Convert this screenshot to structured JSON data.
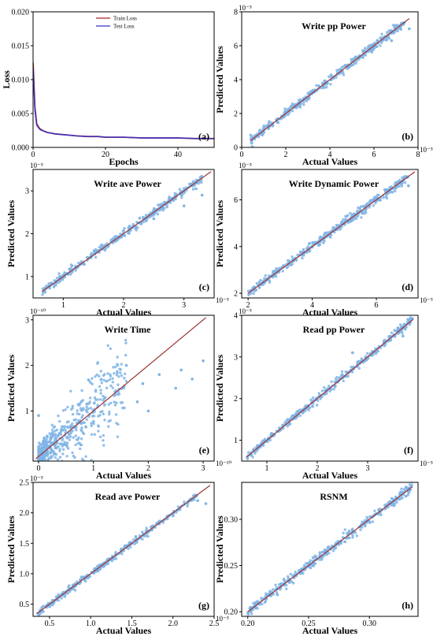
{
  "chart_data": [
    {
      "type": "line",
      "panel": "(a)",
      "xlabel": "Epochs",
      "ylabel": "Loss",
      "xlim": [
        0,
        50
      ],
      "ylim": [
        0,
        0.02
      ],
      "xticks": [
        0,
        20,
        40
      ],
      "xtick_labels": [
        "0",
        "20",
        "40"
      ],
      "yticks": [
        0,
        0.005,
        0.01,
        0.015,
        0.02
      ],
      "ytick_labels": [
        "0.000",
        "0.005",
        "0.010",
        "0.015",
        "0.020"
      ],
      "legend_position": "top-center",
      "colors": {
        "Train Loss": "#b22222",
        "Test Loss": "#3333cc"
      },
      "x": [
        0,
        0.5,
        1,
        1.5,
        2,
        3,
        4,
        5,
        6,
        8,
        10,
        12,
        15,
        18,
        20,
        25,
        30,
        35,
        40,
        45,
        50
      ],
      "series": [
        {
          "name": "Train Loss",
          "values": [
            0.0125,
            0.006,
            0.0035,
            0.003,
            0.0027,
            0.0024,
            0.0022,
            0.0021,
            0.002,
            0.0019,
            0.0018,
            0.0017,
            0.0016,
            0.0016,
            0.0015,
            0.0015,
            0.0014,
            0.0014,
            0.0014,
            0.0013,
            0.0013
          ]
        },
        {
          "name": "Test Loss",
          "values": [
            0.0118,
            0.0055,
            0.0033,
            0.0029,
            0.0026,
            0.0024,
            0.0022,
            0.0021,
            0.002,
            0.0019,
            0.0018,
            0.0017,
            0.0016,
            0.0016,
            0.0015,
            0.0015,
            0.0014,
            0.0014,
            0.0014,
            0.0013,
            0.0013
          ]
        }
      ]
    },
    {
      "type": "scatter",
      "panel": "(b)",
      "title": "Write pp Power",
      "xlabel": "Actual Values",
      "ylabel": "Predicted Values",
      "xlim": [
        0,
        8
      ],
      "ylim": [
        0,
        8
      ],
      "multiplier": "10⁻⁵",
      "xticks": [
        0,
        2,
        4,
        6,
        8
      ],
      "xtick_labels": [
        "0",
        "2",
        "4",
        "6",
        "8"
      ],
      "yticks": [
        0,
        2,
        4,
        6,
        8
      ],
      "ytick_labels": [
        "0",
        "2",
        "4",
        "6",
        "8"
      ],
      "fit_start": 0.4,
      "fit_end": 7.6,
      "range": [
        0.4,
        7.4
      ],
      "scatter": 0.12,
      "n_points": 400,
      "outliers": [
        [
          7.6,
          7.0
        ],
        [
          6.8,
          6.3
        ],
        [
          5.5,
          5.3
        ]
      ]
    },
    {
      "type": "scatter",
      "panel": "(c)",
      "title": "Write ave Power",
      "xlabel": "Actual Values",
      "ylabel": "Predicted Values",
      "xlim": [
        0.5,
        3.5
      ],
      "ylim": [
        0.5,
        3.5
      ],
      "multiplier": "10⁻⁵",
      "xticks": [
        1,
        2,
        3
      ],
      "xtick_labels": [
        "1",
        "2",
        "3"
      ],
      "yticks": [
        1,
        2,
        3
      ],
      "ytick_labels": [
        "1",
        "2",
        "3"
      ],
      "fit_start": 0.65,
      "fit_end": 3.45,
      "range": [
        0.65,
        3.3
      ],
      "scatter": 0.045,
      "n_points": 400,
      "outliers": [
        [
          3.3,
          2.9
        ],
        [
          3.0,
          2.65
        ],
        [
          2.5,
          2.35
        ],
        [
          3.2,
          3.05
        ]
      ]
    },
    {
      "type": "scatter",
      "panel": "(d)",
      "title": "Write Dynamic Power",
      "xlabel": "Actual Values",
      "ylabel": "Predicted Values",
      "xlim": [
        1.8,
        7.3
      ],
      "ylim": [
        1.8,
        7.3
      ],
      "multiplier": "10⁻⁵",
      "xticks": [
        2,
        4,
        6
      ],
      "xtick_labels": [
        "2",
        "4",
        "6"
      ],
      "yticks": [
        2,
        4,
        6
      ],
      "ytick_labels": [
        "2",
        "4",
        "6"
      ],
      "fit_start": 2.0,
      "fit_end": 7.2,
      "range": [
        2.0,
        7.0
      ],
      "scatter": 0.1,
      "n_points": 400,
      "outliers": [
        [
          7.0,
          6.6
        ],
        [
          6.6,
          6.5
        ],
        [
          6.0,
          6.0
        ]
      ]
    },
    {
      "type": "scatter",
      "panel": "(e)",
      "title": "Write Time",
      "xlabel": "Actual Values",
      "ylabel": "Predicted Values",
      "xlim": [
        -0.1,
        3.2
      ],
      "ylim": [
        -0.1,
        3.1
      ],
      "multiplier": "10⁻¹⁰",
      "xticks": [
        0,
        1,
        2,
        3
      ],
      "xtick_labels": [
        "0",
        "1",
        "2",
        "3"
      ],
      "yticks": [
        1,
        2,
        3
      ],
      "ytick_labels": [
        "1",
        "2",
        "3"
      ],
      "fit_start": -0.05,
      "fit_end": 3.05,
      "range": [
        0.0,
        1.6
      ],
      "scatter": 0.33,
      "n_points": 550,
      "outliers": [
        [
          3.0,
          2.1
        ],
        [
          2.8,
          1.7
        ],
        [
          2.5,
          1.5
        ],
        [
          2.2,
          1.8
        ],
        [
          1.8,
          1.2
        ],
        [
          2.0,
          1.0
        ],
        [
          1.6,
          2.0
        ],
        [
          2.6,
          1.9
        ],
        [
          0.0,
          0.9
        ],
        [
          1.9,
          1.6
        ]
      ]
    },
    {
      "type": "scatter",
      "panel": "(f)",
      "title": "Read pp Power",
      "xlabel": "Actual Values",
      "ylabel": "Predicted Values",
      "xlim": [
        0.5,
        4.0
      ],
      "ylim": [
        0.5,
        4.0
      ],
      "multiplier": "10⁻⁵",
      "xticks": [
        1,
        2,
        3
      ],
      "xtick_labels": [
        "1",
        "2",
        "3"
      ],
      "yticks": [
        1,
        2,
        3,
        4
      ],
      "ytick_labels": [
        "1",
        "2",
        "3",
        "4"
      ],
      "fit_start": 0.6,
      "fit_end": 3.9,
      "range": [
        0.6,
        3.9
      ],
      "scatter": 0.05,
      "n_points": 400,
      "outliers": [
        [
          2.7,
          3.1
        ],
        [
          3.6,
          3.7
        ],
        [
          3.7,
          3.5
        ],
        [
          3.8,
          3.9
        ]
      ]
    },
    {
      "type": "scatter",
      "panel": "(g)",
      "title": "Read ave Power",
      "xlabel": "Actual Values",
      "ylabel": "Predicted Values",
      "xlim": [
        0.3,
        2.5
      ],
      "ylim": [
        0.3,
        2.5
      ],
      "multiplier": "10⁻⁵",
      "xticks": [
        0.5,
        1.0,
        1.5,
        2.0,
        2.5
      ],
      "xtick_labels": [
        "0.5",
        "1.0",
        "1.5",
        "2.0",
        "2.5"
      ],
      "yticks": [
        0.5,
        1.0,
        1.5,
        2.0,
        2.5
      ],
      "ytick_labels": [
        "0.5",
        "1.0",
        "1.5",
        "2.0",
        "2.5"
      ],
      "fit_start": 0.35,
      "fit_end": 2.45,
      "range": [
        0.35,
        2.3
      ],
      "scatter": 0.025,
      "n_points": 400,
      "outliers": [
        [
          2.4,
          2.15
        ],
        [
          2.3,
          2.2
        ],
        [
          2.0,
          1.95
        ]
      ]
    },
    {
      "type": "scatter",
      "panel": "(h)",
      "title": "RSNM",
      "xlabel": "Actual Values",
      "ylabel": "Predicted Values",
      "xlim": [
        0.195,
        0.34
      ],
      "ylim": [
        0.195,
        0.34
      ],
      "xticks": [
        0.2,
        0.25,
        0.3
      ],
      "xtick_labels": [
        "0.20",
        "0.25",
        "0.30"
      ],
      "yticks": [
        0.2,
        0.25,
        0.3
      ],
      "ytick_labels": [
        "0.20",
        "0.25",
        "0.30"
      ],
      "fit_start": 0.2,
      "fit_end": 0.335,
      "range": [
        0.2,
        0.335
      ],
      "scatter": 0.0025,
      "n_points": 400,
      "outliers": [
        [
          0.33,
          0.335
        ],
        [
          0.33,
          0.325
        ]
      ]
    }
  ],
  "colors": {
    "points": "#7fb4e6",
    "fit_line": "#cc3333",
    "diag_line": "#444444"
  }
}
